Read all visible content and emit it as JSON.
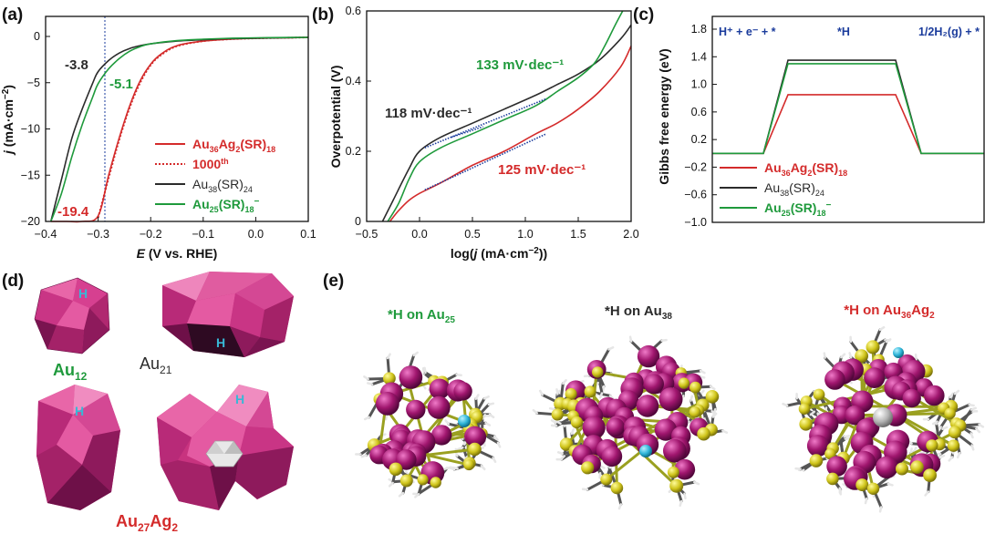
{
  "panels": {
    "a": {
      "label": "(a)"
    },
    "b": {
      "label": "(b)"
    },
    "c": {
      "label": "(c)"
    },
    "d": {
      "label": "(d)"
    },
    "e": {
      "label": "(e)"
    }
  },
  "colors": {
    "red": "#d42b2b",
    "black": "#2b2b2b",
    "green": "#1f9a3c",
    "blue": "#1a3b9c",
    "magenta": "#c2247e",
    "yellow": "#d4cc1e",
    "cyan": "#38b8d6"
  },
  "chart_data": [
    {
      "type": "line",
      "panel": "(a)",
      "xlabel": "E (V vs. RHE)",
      "ylabel": "j (mA·cm⁻²)",
      "xlim": [
        -0.4,
        0.1
      ],
      "ylim": [
        -20,
        1
      ],
      "xticks": [
        "-0.4",
        "-0.3",
        "-0.2",
        "-0.1",
        "0.0",
        "0.1"
      ],
      "yticks": [
        "0",
        "-5",
        "-10",
        "-15",
        "-20"
      ],
      "vline_x": -0.3,
      "legend_position": "lower-right",
      "series": [
        {
          "name": "Au36Ag2(SR)18",
          "style": "solid",
          "color": "#d42b2b",
          "x": [
            -0.39,
            -0.36,
            -0.33,
            -0.3,
            -0.28,
            -0.26,
            -0.24,
            -0.22,
            -0.2,
            -0.18,
            -0.15,
            -0.1,
            -0.05,
            0.0,
            0.05,
            0.1
          ],
          "y": [
            -20,
            -20,
            -20,
            -19.4,
            -15,
            -11,
            -7.5,
            -4.8,
            -3.0,
            -1.9,
            -1.0,
            -0.5,
            -0.3,
            -0.2,
            -0.15,
            -0.1
          ]
        },
        {
          "name": "1000th",
          "style": "dotted",
          "color": "#d42b2b",
          "x": [
            -0.3,
            -0.28,
            -0.26,
            -0.24,
            -0.22,
            -0.2,
            -0.18,
            -0.15,
            -0.1,
            -0.05,
            0.0,
            0.05,
            0.1
          ],
          "y": [
            -19.6,
            -15.3,
            -11.2,
            -7.7,
            -5.0,
            -3.1,
            -2.0,
            -1.05,
            -0.5,
            -0.3,
            -0.2,
            -0.15,
            -0.1
          ]
        },
        {
          "name": "Au38(SR)24",
          "style": "solid",
          "color": "#2b2b2b",
          "x": [
            -0.39,
            -0.37,
            -0.35,
            -0.33,
            -0.31,
            -0.3,
            -0.28,
            -0.26,
            -0.24,
            -0.22,
            -0.2,
            -0.15,
            -0.1,
            -0.05,
            0.0,
            0.05,
            0.1
          ],
          "y": [
            -20,
            -15.5,
            -11,
            -7.8,
            -5.0,
            -3.8,
            -2.6,
            -1.8,
            -1.3,
            -1.0,
            -0.8,
            -0.5,
            -0.35,
            -0.25,
            -0.2,
            -0.15,
            -0.1
          ]
        },
        {
          "name": "Au25(SR)18⁻",
          "style": "solid",
          "color": "#1f9a3c",
          "x": [
            -0.39,
            -0.37,
            -0.35,
            -0.33,
            -0.31,
            -0.3,
            -0.28,
            -0.26,
            -0.24,
            -0.22,
            -0.2,
            -0.15,
            -0.1,
            -0.05,
            0.0,
            0.05,
            0.1
          ],
          "y": [
            -20,
            -17,
            -13,
            -9.5,
            -6.5,
            -5.1,
            -3.5,
            -2.4,
            -1.6,
            -1.1,
            -0.8,
            -0.45,
            -0.3,
            -0.2,
            -0.15,
            -0.12,
            -0.1
          ]
        }
      ],
      "annotations": [
        {
          "text": "-3.8",
          "color": "#2b2b2b",
          "x": -0.35,
          "y": -2.6
        },
        {
          "text": "-5.1",
          "color": "#1f9a3c",
          "x": -0.29,
          "y": -4.4
        },
        {
          "text": "-19.4",
          "color": "#d42b2b",
          "x": -0.36,
          "y": -19.2
        }
      ]
    },
    {
      "type": "line",
      "panel": "(b)",
      "xlabel": "log(j (mA·cm⁻²))",
      "ylabel": "Overpotential (V)",
      "xlim": [
        -0.5,
        2.0
      ],
      "ylim": [
        0,
        0.6
      ],
      "xticks": [
        "-0.5",
        "0.0",
        "0.5",
        "1.0",
        "1.5",
        "2.0"
      ],
      "yticks": [
        "0",
        "0.2",
        "0.4",
        "0.6"
      ],
      "series": [
        {
          "name": "Au38(SR)24",
          "color": "#2b2b2b",
          "x": [
            -0.35,
            -0.25,
            -0.1,
            0.0,
            0.2,
            0.5,
            0.8,
            1.1,
            1.3,
            1.5,
            1.7,
            1.9,
            2.0
          ],
          "y": [
            0.0,
            0.06,
            0.15,
            0.2,
            0.24,
            0.28,
            0.32,
            0.36,
            0.39,
            0.42,
            0.46,
            0.52,
            0.56
          ]
        },
        {
          "name": "Au25(SR)18⁻",
          "color": "#1f9a3c",
          "x": [
            -0.3,
            -0.2,
            -0.1,
            0.0,
            0.2,
            0.5,
            0.8,
            1.1,
            1.3,
            1.5,
            1.65,
            1.75,
            1.85,
            1.92
          ],
          "y": [
            0.0,
            0.05,
            0.12,
            0.17,
            0.21,
            0.25,
            0.29,
            0.33,
            0.37,
            0.41,
            0.45,
            0.5,
            0.56,
            0.6
          ]
        },
        {
          "name": "Au36Ag2(SR)18",
          "color": "#d42b2b",
          "x": [
            -0.28,
            -0.2,
            -0.1,
            0.0,
            0.2,
            0.5,
            0.8,
            1.1,
            1.3,
            1.5,
            1.7,
            1.9,
            2.0
          ],
          "y": [
            0.0,
            0.03,
            0.06,
            0.08,
            0.11,
            0.16,
            0.2,
            0.25,
            0.28,
            0.32,
            0.37,
            0.44,
            0.5
          ]
        }
      ],
      "fits": [
        {
          "color": "#1a3b9c",
          "x": [
            0.05,
            1.2
          ],
          "y": [
            0.21,
            0.35
          ]
        },
        {
          "color": "#1a3b9c",
          "x": [
            0.05,
            1.2
          ],
          "y": [
            0.09,
            0.25
          ]
        },
        {
          "color": "#1a3b9c",
          "x": [
            0.3,
            0.6
          ],
          "y": [
            0.24,
            0.27
          ]
        }
      ],
      "annotations": [
        {
          "text": "133 mV·dec⁻¹",
          "color": "#1f9a3c"
        },
        {
          "text": "118 mV·dec⁻¹",
          "color": "#2b2b2b"
        },
        {
          "text": "125 mV·dec⁻¹",
          "color": "#d42b2b"
        }
      ]
    },
    {
      "type": "line",
      "panel": "(c)",
      "ylabel": "Gibbs free energy (eV)",
      "ylim": [
        -1.0,
        1.8
      ],
      "yticks": [
        "1.8",
        "1.4",
        "1.0",
        "0.6",
        "0.2",
        "-0.2",
        "-0.6",
        "-1.0"
      ],
      "categories": [
        "H⁺ + e⁻ + *",
        "*H",
        "1/2H₂(g) + *"
      ],
      "series": [
        {
          "name": "Au36Ag2(SR)18",
          "color": "#d42b2b",
          "values": [
            0,
            0.85,
            0
          ]
        },
        {
          "name": "Au38(SR)24",
          "color": "#2b2b2b",
          "values": [
            0,
            1.35,
            0
          ]
        },
        {
          "name": "Au25(SR)18⁻",
          "color": "#1f9a3c",
          "values": [
            0,
            1.3,
            0
          ]
        }
      ],
      "legend_position": "bottom-left"
    }
  ],
  "panel_d": {
    "labels": [
      {
        "base": "Au",
        "sub": "12",
        "color": "#1f9a3c"
      },
      {
        "base": "Au",
        "sub": "21",
        "color": "#2b2b2b"
      },
      {
        "base": "Au",
        "sub": "27",
        "base2": "Ag",
        "sub2": "2",
        "color": "#d42b2b"
      }
    ],
    "h_marker": "H"
  },
  "panel_e": {
    "titles": [
      {
        "prefix": "*H on Au",
        "sub": "25",
        "color": "#1f9a3c"
      },
      {
        "prefix": "*H on Au",
        "sub": "38",
        "color": "#2b2b2b"
      },
      {
        "prefix": "*H on Au",
        "sub": "36",
        "mid": "Ag",
        "sub2": "2",
        "color": "#d42b2b"
      }
    ]
  }
}
